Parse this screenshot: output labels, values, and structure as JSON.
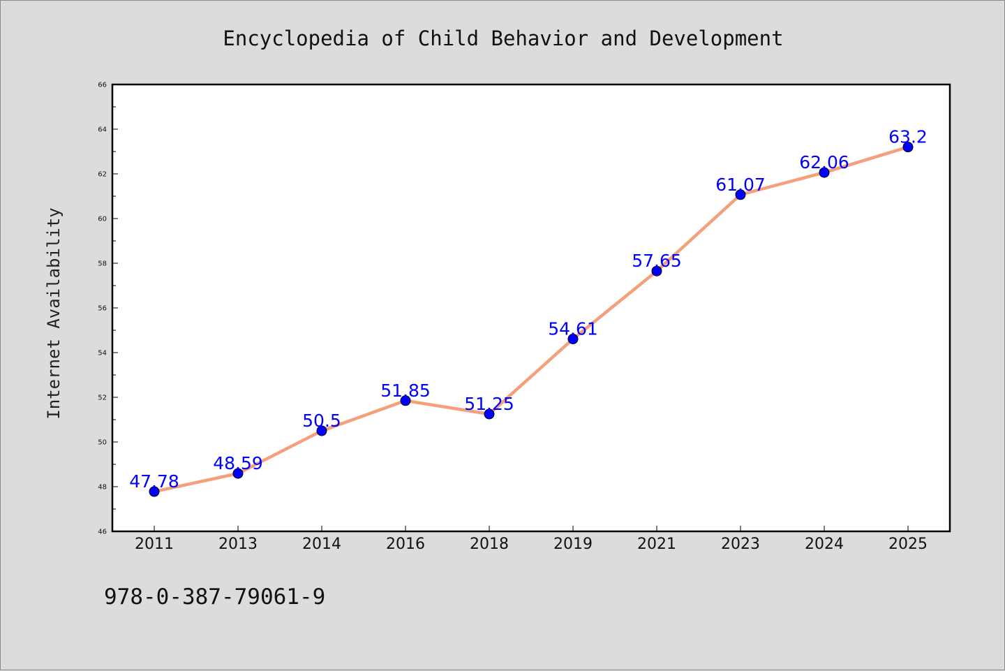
{
  "chart_data": {
    "type": "line",
    "title": "Encyclopedia of Child Behavior and Development",
    "xlabel": "",
    "ylabel": "Internet Availability",
    "categories": [
      "2011",
      "2013",
      "2014",
      "2016",
      "2018",
      "2019",
      "2021",
      "2023",
      "2024",
      "2025"
    ],
    "series": [
      {
        "values": [
          47.78,
          48.59,
          50.5,
          51.85,
          51.25,
          54.61,
          57.65,
          61.07,
          62.06,
          63.2
        ],
        "labels": [
          "47.78",
          "48.59",
          "50.5",
          "51.85",
          "51.25",
          "54.61",
          "57.65",
          "61.07",
          "62.06",
          "63.2"
        ],
        "line_color": "#f4a07a",
        "marker_color": "#0000ff"
      }
    ],
    "ylim": [
      46,
      66
    ],
    "yticks": [
      "46",
      "48",
      "50",
      "52",
      "54",
      "56",
      "58",
      "60",
      "62",
      "64",
      "66"
    ],
    "grid": false,
    "legend": "none"
  },
  "footer": {
    "isbn": "978-0-387-79061-9"
  },
  "colors": {
    "background": "#dcdcdc",
    "plot_background": "#ffffff",
    "data_label": "#0000ff"
  }
}
